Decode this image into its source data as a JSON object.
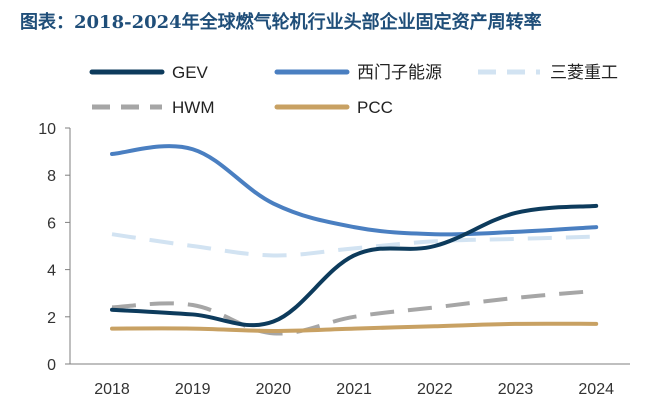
{
  "title": "图表：2018-2024年全球燃气轮机行业头部企业固定资产周转率",
  "chart_data": {
    "type": "line",
    "title": "图表：2018-2024年全球燃气轮机行业头部企业固定资产周转率",
    "xlabel": "",
    "ylabel": "",
    "x": [
      "2018",
      "2019",
      "2020",
      "2021",
      "2022",
      "2023",
      "2024"
    ],
    "ylim": [
      0,
      10
    ],
    "yticks": [
      0,
      2,
      4,
      6,
      8,
      10
    ],
    "series": [
      {
        "name": "GEV",
        "values": [
          2.3,
          2.1,
          1.8,
          4.6,
          5.0,
          6.4,
          6.7
        ],
        "color": "#0d3b5c",
        "dash": "solid"
      },
      {
        "name": "西门子能源",
        "values": [
          8.9,
          9.1,
          6.8,
          5.8,
          5.5,
          5.6,
          5.8
        ],
        "color": "#4a7fc1",
        "dash": "solid"
      },
      {
        "name": "三菱重工",
        "values": [
          5.5,
          5.0,
          4.6,
          4.9,
          5.2,
          5.3,
          5.4
        ],
        "color": "#d2e3f2",
        "dash": "dashed"
      },
      {
        "name": "HWM",
        "values": [
          2.4,
          2.5,
          1.3,
          2.0,
          2.4,
          2.8,
          3.1
        ],
        "color": "#a6a6a6",
        "dash": "dashed"
      },
      {
        "name": "PCC",
        "values": [
          1.5,
          1.5,
          1.4,
          1.5,
          1.6,
          1.7,
          1.7
        ],
        "color": "#c8a163",
        "dash": "solid"
      }
    ],
    "legend_position": "top",
    "grid": false
  }
}
